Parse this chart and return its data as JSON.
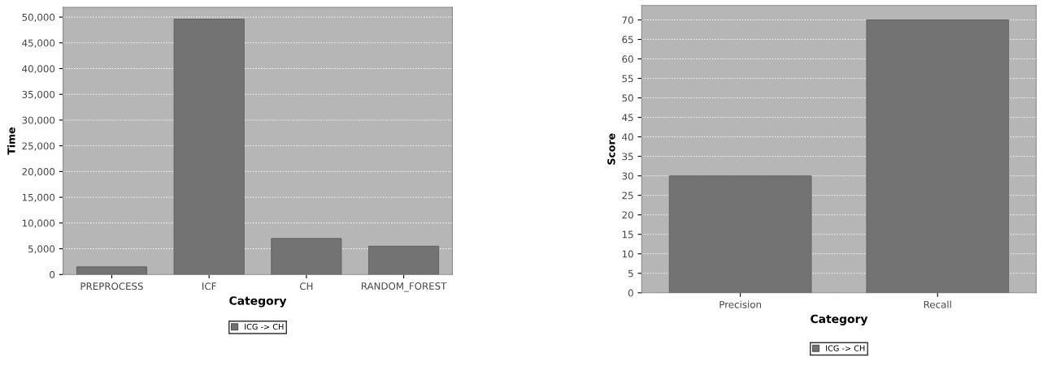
{
  "chart_data": [
    {
      "type": "bar",
      "xlabel": "Category",
      "ylabel": "Time",
      "categories": [
        "PREPROCESS",
        "ICF",
        "CH",
        "RANDOM_FOREST"
      ],
      "series": [
        {
          "name": "ICG -> CH",
          "color": "#737373",
          "values": [
            1500,
            49600,
            7000,
            5500
          ]
        }
      ],
      "ylim": [
        0,
        51900
      ],
      "yticks": [
        {
          "value": 0,
          "label": "0"
        },
        {
          "value": 5000,
          "label": "5,000"
        },
        {
          "value": 10000,
          "label": "10,000"
        },
        {
          "value": 15000,
          "label": "15,000"
        },
        {
          "value": 20000,
          "label": "20,000"
        },
        {
          "value": 25000,
          "label": "25,000"
        },
        {
          "value": 30000,
          "label": "30,000"
        },
        {
          "value": 35000,
          "label": "35,000"
        },
        {
          "value": 40000,
          "label": "40,000"
        },
        {
          "value": 45000,
          "label": "45,000"
        },
        {
          "value": 50000,
          "label": "50,000"
        }
      ],
      "grid": "y",
      "legend": "bottom"
    },
    {
      "type": "bar",
      "xlabel": "Category",
      "ylabel": "Score",
      "categories": [
        "Precision",
        "Recall"
      ],
      "series": [
        {
          "name": "ICG -> CH",
          "color": "#737373",
          "values": [
            30,
            70
          ]
        }
      ],
      "ylim": [
        0,
        73.7
      ],
      "yticks": [
        0,
        5,
        10,
        15,
        20,
        25,
        30,
        35,
        40,
        45,
        50,
        55,
        60,
        65,
        70
      ],
      "grid": "y",
      "legend": "bottom"
    }
  ]
}
